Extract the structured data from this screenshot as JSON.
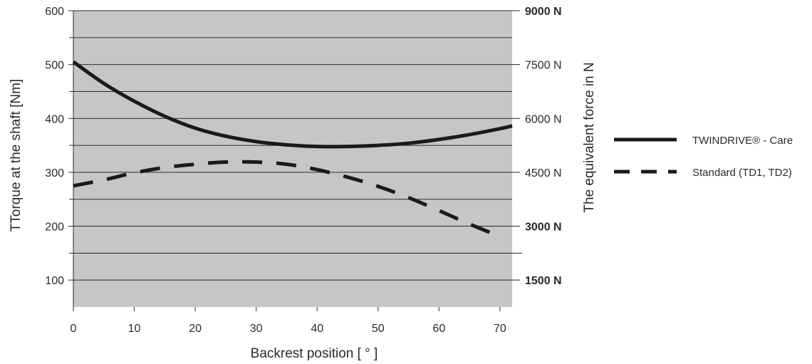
{
  "chart_data": {
    "type": "line",
    "xlabel": "Backrest position [ ° ]",
    "ylabel": "TTorque at the shaft [Nm]",
    "y2label": "The equivalent force in N",
    "xlim": [
      0,
      72
    ],
    "ylim": [
      50,
      600
    ],
    "x_ticks": [
      0,
      10,
      20,
      30,
      40,
      50,
      60,
      70
    ],
    "y_ticks": [
      100,
      200,
      300,
      400,
      500,
      600
    ],
    "y2_ticks": [
      {
        "value": 600,
        "label": "9000 N",
        "bold": true
      },
      {
        "value": 500,
        "label": "7500 N",
        "bold": false
      },
      {
        "value": 400,
        "label": "6000 N",
        "bold": false
      },
      {
        "value": 300,
        "label": "4500 N",
        "bold": false
      },
      {
        "value": 200,
        "label": "3000 N",
        "bold": true
      },
      {
        "value": 100,
        "label": "1500 N",
        "bold": true
      }
    ],
    "grid": true,
    "legend_position": "right",
    "plot_background": "#c6c6c6",
    "series": [
      {
        "name": "TWINDRIVE® - Care",
        "style": "solid",
        "color": "#1a1a1a",
        "x": [
          0,
          5,
          10,
          15,
          20,
          25,
          30,
          35,
          40,
          45,
          50,
          55,
          60,
          65,
          70,
          72
        ],
        "y": [
          505,
          465,
          432,
          404,
          382,
          367,
          357,
          351,
          348,
          348,
          350,
          354,
          361,
          370,
          381,
          386
        ]
      },
      {
        "name": "Standard (TD1, TD2)",
        "style": "dashed",
        "color": "#1a1a1a",
        "x": [
          0,
          5,
          10,
          15,
          20,
          25,
          30,
          35,
          40,
          45,
          50,
          55,
          60,
          65,
          70
        ],
        "y": [
          275,
          286,
          299,
          309,
          315,
          319,
          319,
          315,
          305,
          291,
          274,
          253,
          229,
          204,
          181
        ]
      }
    ]
  }
}
